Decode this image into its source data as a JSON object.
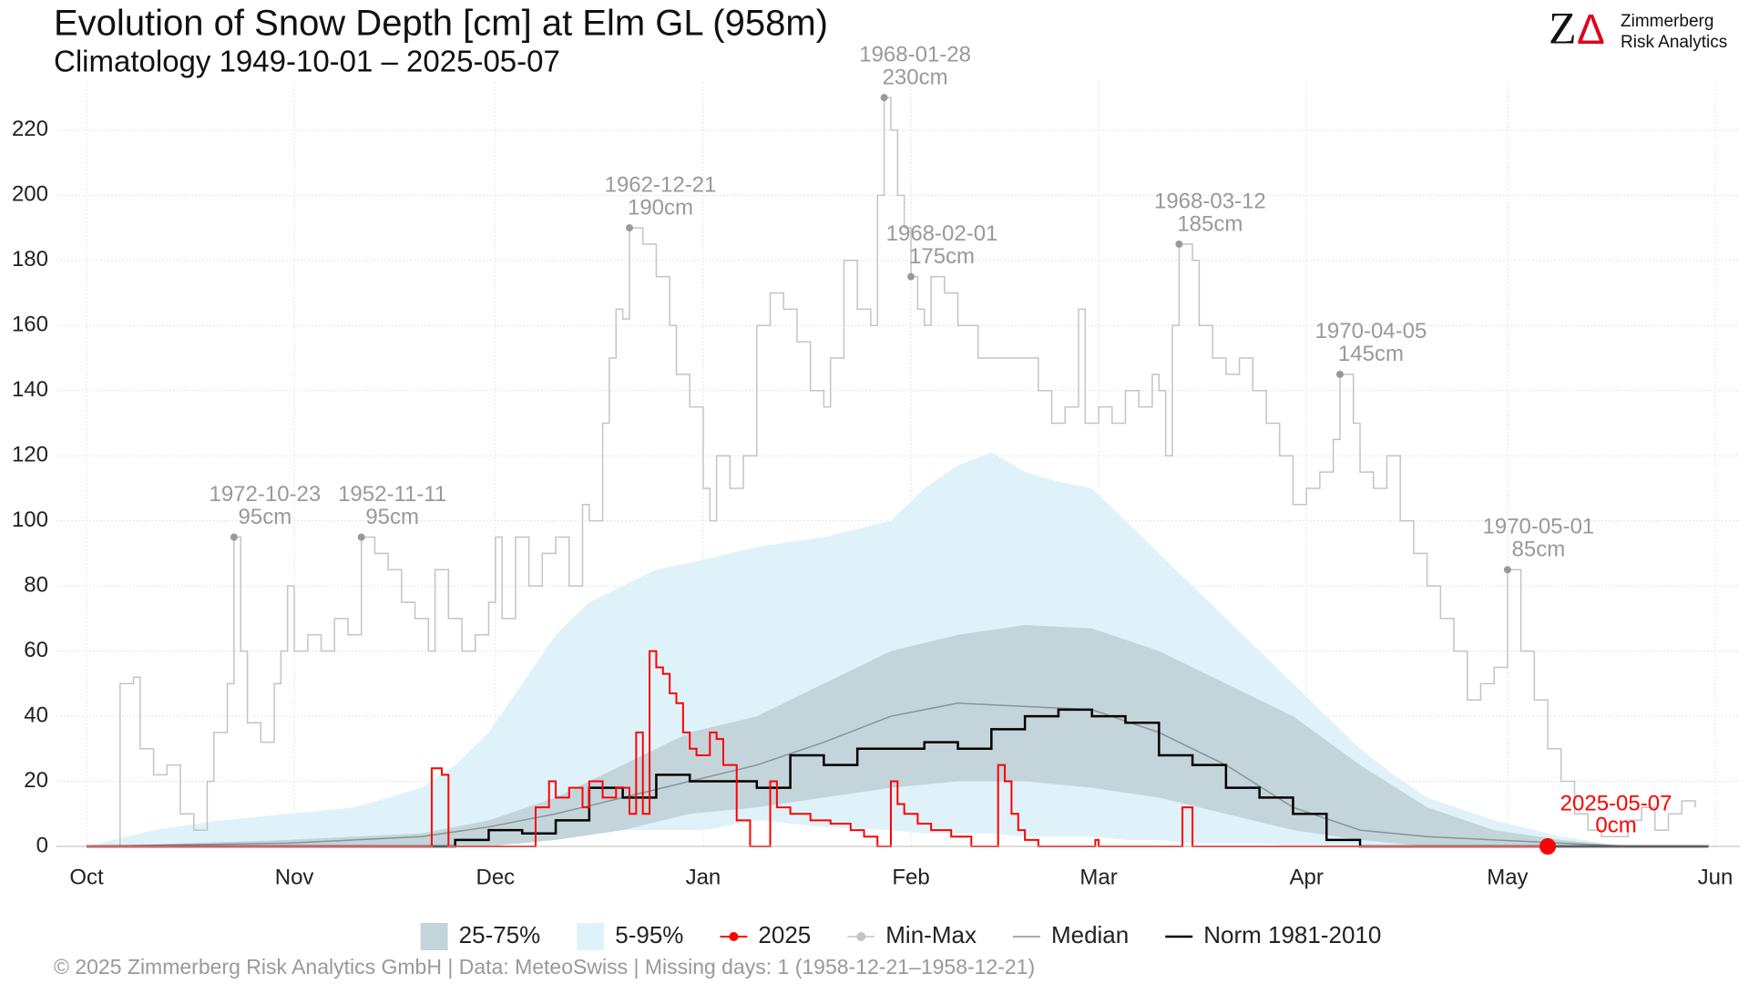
{
  "chart_data": {
    "type": "line",
    "title": "Evolution of Snow Depth [cm] at Elm  GL (958m)",
    "subtitle": "Climatology 1949-10-01 – 2025-05-07",
    "footer": "©  2025 Zimmerberg Risk Analytics GmbH | Data: MeteoSwiss | Missing days: 1 (1958-12-21–1958-12-21)",
    "logo": {
      "letter": "Z",
      "symbol": "Δ",
      "line1": "Zimmerberg",
      "line2": "Risk Analytics"
    },
    "xlim": [
      0,
      243
    ],
    "xticks": [
      {
        "value": 0,
        "label": "Oct"
      },
      {
        "value": 31,
        "label": "Nov"
      },
      {
        "value": 61,
        "label": "Dec"
      },
      {
        "value": 92,
        "label": "Jan"
      },
      {
        "value": 123,
        "label": "Feb"
      },
      {
        "value": 151,
        "label": "Mar"
      },
      {
        "value": 182,
        "label": "Apr"
      },
      {
        "value": 212,
        "label": "May"
      },
      {
        "value": 243,
        "label": "Jun"
      }
    ],
    "ylim": [
      0,
      232
    ],
    "yticks": [
      0,
      20,
      40,
      60,
      80,
      100,
      120,
      140,
      160,
      180,
      200,
      220
    ],
    "grid": true,
    "legend": "bottom",
    "series": [
      {
        "name": "25-75%",
        "kind": "band",
        "color": "#c3d5db",
        "x": [
          0,
          30,
          50,
          60,
          70,
          80,
          90,
          100,
          110,
          120,
          130,
          140,
          150,
          160,
          170,
          180,
          190,
          200,
          210,
          220,
          230
        ],
        "upper": [
          0,
          2,
          4,
          8,
          15,
          25,
          35,
          40,
          50,
          60,
          65,
          68,
          67,
          60,
          50,
          40,
          25,
          12,
          5,
          2,
          0
        ],
        "lower": [
          0,
          0,
          0,
          0,
          2,
          5,
          10,
          12,
          15,
          18,
          20,
          20,
          18,
          15,
          10,
          5,
          2,
          0,
          0,
          0,
          0
        ]
      },
      {
        "name": "5-95%",
        "kind": "band",
        "color": "#dff2f9",
        "x": [
          0,
          10,
          20,
          30,
          40,
          50,
          55,
          60,
          65,
          70,
          75,
          80,
          85,
          92,
          100,
          110,
          120,
          125,
          130,
          135,
          140,
          145,
          150,
          155,
          160,
          165,
          170,
          175,
          180,
          185,
          190,
          195,
          200,
          210,
          220,
          230
        ],
        "upper": [
          0,
          5,
          8,
          10,
          12,
          18,
          25,
          35,
          50,
          65,
          75,
          80,
          85,
          88,
          92,
          95,
          100,
          110,
          117,
          121,
          115,
          112,
          110,
          100,
          90,
          80,
          70,
          60,
          50,
          40,
          30,
          22,
          15,
          8,
          3,
          0
        ],
        "lower": [
          0,
          0,
          0,
          0,
          0,
          2,
          3,
          3,
          4,
          4,
          5,
          5,
          5,
          5,
          8,
          6,
          5,
          4,
          4,
          4,
          3,
          3,
          3,
          2,
          2,
          1,
          1,
          1,
          0,
          0,
          0,
          0,
          0,
          0,
          0,
          0
        ]
      },
      {
        "name": "2025",
        "kind": "line",
        "color": "#ff0000",
        "step": true,
        "marker": true,
        "width": 2,
        "x": [
          0,
          51,
          51.5,
          53,
          54,
          66,
          67,
          69,
          70,
          72,
          74,
          75,
          77,
          79,
          81,
          82,
          83,
          84,
          85,
          86,
          87,
          88,
          89,
          90,
          91,
          93,
          94,
          95,
          97,
          99,
          101,
          102,
          103,
          105,
          108,
          111,
          114,
          116,
          118,
          119,
          120,
          121,
          122,
          124,
          126,
          129,
          132,
          135,
          136,
          137,
          138,
          139,
          140,
          142,
          150,
          150.5,
          151,
          163,
          163.5,
          165,
          218
        ],
        "values": [
          0,
          0,
          24,
          22,
          0,
          0,
          12,
          20,
          15,
          18,
          12,
          20,
          15,
          18,
          10,
          35,
          10,
          60,
          55,
          53,
          47,
          44,
          35,
          30,
          28,
          35,
          33,
          25,
          8,
          0,
          0,
          20,
          12,
          10,
          8,
          7,
          5,
          3,
          0,
          0,
          20,
          13,
          10,
          7,
          5,
          3,
          0,
          0,
          25,
          20,
          10,
          5,
          2,
          0,
          0,
          2,
          0,
          0,
          12,
          0,
          0
        ],
        "current": {
          "date": "2025-05-07",
          "label": "0cm"
        }
      },
      {
        "name": "Min-Max",
        "kind": "line",
        "color": "#c4c4c4",
        "step": true,
        "marker": true,
        "width": 1.5,
        "x": [
          0,
          4,
          5,
          7,
          8,
          10,
          12,
          14,
          16,
          18,
          19,
          21,
          22,
          23,
          24,
          26,
          28,
          29,
          30,
          31,
          33,
          35,
          37,
          39,
          41,
          43,
          45,
          47,
          49,
          51,
          52,
          54,
          56,
          58,
          60,
          61,
          62,
          64,
          66,
          68,
          70,
          72,
          74,
          75,
          77,
          78,
          79,
          80,
          81,
          83,
          85,
          87,
          88,
          90,
          92,
          93,
          94,
          96,
          98,
          100,
          102,
          104,
          106,
          108,
          110,
          111,
          113,
          115,
          117,
          118,
          119,
          120,
          121,
          122,
          123,
          124,
          125,
          126,
          128,
          130,
          133,
          138,
          142,
          144,
          146,
          148,
          149,
          151,
          153,
          155,
          157,
          159,
          160,
          161,
          162,
          163,
          165,
          166,
          168,
          170,
          172,
          174,
          176,
          178,
          180,
          182,
          184,
          186,
          187,
          189,
          190,
          192,
          194,
          196,
          198,
          200,
          202,
          204,
          206,
          208,
          210,
          212,
          214,
          216,
          218,
          220,
          222,
          224,
          226,
          230,
          232,
          234,
          236,
          238,
          240
        ],
        "values": [
          0,
          0,
          50,
          52,
          30,
          22,
          25,
          10,
          5,
          20,
          35,
          50,
          95,
          60,
          38,
          32,
          50,
          60,
          80,
          60,
          65,
          60,
          70,
          65,
          95,
          90,
          85,
          75,
          70,
          60,
          85,
          70,
          60,
          65,
          75,
          95,
          70,
          95,
          80,
          90,
          95,
          80,
          105,
          100,
          130,
          150,
          165,
          162,
          190,
          185,
          175,
          160,
          145,
          135,
          110,
          100,
          120,
          110,
          120,
          160,
          170,
          165,
          155,
          140,
          135,
          150,
          180,
          165,
          160,
          200,
          230,
          220,
          200,
          190,
          175,
          165,
          160,
          175,
          170,
          160,
          150,
          150,
          140,
          130,
          135,
          165,
          130,
          135,
          130,
          140,
          135,
          145,
          140,
          120,
          160,
          185,
          180,
          160,
          150,
          145,
          150,
          140,
          130,
          120,
          105,
          110,
          115,
          125,
          145,
          130,
          115,
          110,
          120,
          100,
          90,
          80,
          70,
          60,
          45,
          50,
          55,
          85,
          60,
          45,
          30,
          20,
          10,
          5,
          3,
          8,
          12,
          5,
          10,
          14,
          12
        ]
      },
      {
        "name": "Median",
        "kind": "line",
        "color": "#8a9296",
        "step": false,
        "width": 1.5,
        "x": [
          0,
          30,
          50,
          60,
          70,
          80,
          90,
          100,
          110,
          120,
          130,
          140,
          150,
          160,
          170,
          180,
          190,
          200,
          210,
          220,
          230
        ],
        "values": [
          0,
          1,
          3,
          6,
          10,
          15,
          20,
          25,
          32,
          40,
          44,
          43,
          42,
          35,
          25,
          12,
          5,
          3,
          2,
          1,
          0
        ]
      },
      {
        "name": "Norm 1981-2010",
        "kind": "line",
        "color": "#000000",
        "step": true,
        "width": 2.5,
        "x": [
          0,
          50,
          55,
          60,
          65,
          70,
          75,
          80,
          85,
          90,
          95,
          100,
          105,
          110,
          115,
          120,
          125,
          130,
          135,
          140,
          145,
          150,
          155,
          160,
          165,
          170,
          175,
          180,
          185,
          190,
          242
        ],
        "values": [
          0,
          0,
          2,
          5,
          4,
          8,
          18,
          15,
          22,
          20,
          20,
          18,
          28,
          25,
          30,
          30,
          32,
          30,
          36,
          40,
          42,
          40,
          38,
          28,
          25,
          18,
          15,
          10,
          2,
          0,
          0
        ]
      }
    ],
    "annotations": [
      {
        "date": "1972-10-23",
        "label": "95cm",
        "x": 22,
        "value": 95
      },
      {
        "date": "1952-11-11",
        "label": "95cm",
        "x": 41,
        "value": 95
      },
      {
        "date": "1962-12-21",
        "label": "190cm",
        "x": 81,
        "value": 190
      },
      {
        "date": "1968-01-28",
        "label": "230cm",
        "x": 119,
        "value": 230
      },
      {
        "date": "1968-02-01",
        "label": "175cm",
        "x": 123,
        "value": 175
      },
      {
        "date": "1968-03-12",
        "label": "185cm",
        "x": 163,
        "value": 185
      },
      {
        "date": "1970-04-05",
        "label": "145cm",
        "x": 187,
        "value": 145
      },
      {
        "date": "1970-05-01",
        "label": "85cm",
        "x": 212,
        "value": 85
      }
    ]
  }
}
